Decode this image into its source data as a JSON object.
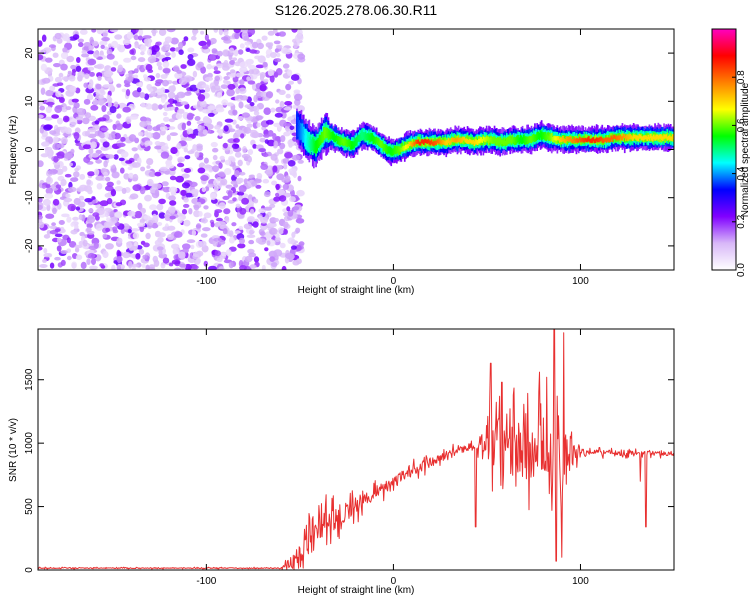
{
  "title": "S126.2025.278.06.30.R11",
  "chart_data": [
    {
      "type": "heatmap",
      "name": "spectrogram",
      "xlabel": "Height of straight line (km)",
      "ylabel": "Frequency (Hz)",
      "xlim": [
        -190,
        150
      ],
      "ylim": [
        -25,
        25
      ],
      "x_ticks": [
        -100,
        0,
        100
      ],
      "y_ticks": [
        -20,
        -10,
        0,
        10,
        20
      ],
      "colorbar": {
        "label": "Normalized spectral amplitude",
        "range": [
          0,
          1
        ],
        "ticks": [
          "0.0",
          "0.2",
          "0.4",
          "0.6",
          "0.8"
        ],
        "colors": [
          "#ffffff",
          "#d8b8f8",
          "#8000ff",
          "#0000ff",
          "#00ffff",
          "#00ff00",
          "#ffff00",
          "#ff8000",
          "#ff0000",
          "#ff00c0"
        ]
      },
      "noise_region_x": [
        -190,
        -52
      ],
      "signal_track": {
        "x": [
          -52,
          -47,
          -42,
          -37,
          -32,
          -27,
          -22,
          -17,
          -12,
          -7,
          -2,
          3,
          8,
          13,
          18,
          23,
          28,
          33,
          38,
          43,
          48,
          53,
          58,
          63,
          68,
          73,
          78,
          83,
          88,
          93,
          98,
          103,
          108,
          113,
          118,
          123,
          128,
          133,
          138,
          143,
          150
        ],
        "y": [
          5,
          2,
          0.5,
          3.5,
          2.5,
          1.5,
          1,
          3,
          2.5,
          1,
          -0.5,
          0,
          1,
          1.5,
          1.5,
          1.5,
          1.5,
          2,
          2,
          1.5,
          2,
          2,
          1.5,
          2,
          2,
          2,
          3,
          2.5,
          2,
          2,
          2,
          2,
          2,
          2,
          2.5,
          2.5,
          2.5,
          2.5,
          2.5,
          2.5,
          2.5
        ],
        "amplitude": [
          0.35,
          0.45,
          0.55,
          0.6,
          0.55,
          0.6,
          0.55,
          0.5,
          0.55,
          0.6,
          0.55,
          0.6,
          0.7,
          0.85,
          0.85,
          0.8,
          0.7,
          0.75,
          0.7,
          0.7,
          0.65,
          0.6,
          0.6,
          0.6,
          0.55,
          0.6,
          0.55,
          0.6,
          0.7,
          0.75,
          0.8,
          0.85,
          0.85,
          0.8,
          0.8,
          0.75,
          0.7,
          0.7,
          0.7,
          0.7,
          0.7
        ]
      }
    },
    {
      "type": "line",
      "name": "snr",
      "xlabel": "Height of straight line (km)",
      "ylabel": "SNR (10 * v/v)",
      "xlim": [
        -190,
        150
      ],
      "ylim": [
        0,
        1900
      ],
      "x_ticks": [
        -100,
        0,
        100
      ],
      "y_ticks": [
        0,
        500,
        1000,
        1500
      ],
      "color": "#e83030",
      "envelope": {
        "x": [
          -190,
          -60,
          -50,
          -45,
          -40,
          -35,
          -30,
          -25,
          -20,
          -15,
          -10,
          -5,
          0,
          5,
          10,
          15,
          20,
          25,
          30,
          35,
          40,
          45,
          50,
          55,
          60,
          65,
          70,
          75,
          80,
          85,
          90,
          95,
          100,
          105,
          110,
          115,
          120,
          125,
          130,
          135,
          140,
          145,
          150
        ],
        "mean": [
          15,
          15,
          100,
          300,
          340,
          390,
          420,
          470,
          500,
          560,
          610,
          650,
          680,
          740,
          790,
          820,
          850,
          880,
          920,
          950,
          960,
          980,
          1000,
          980,
          960,
          950,
          940,
          930,
          920,
          920,
          930,
          940,
          940,
          930,
          930,
          930,
          920,
          920,
          920,
          920,
          920,
          920,
          920
        ],
        "spread": [
          8,
          8,
          200,
          260,
          220,
          220,
          200,
          180,
          160,
          140,
          120,
          110,
          110,
          100,
          90,
          90,
          80,
          70,
          60,
          60,
          70,
          80,
          450,
          500,
          520,
          520,
          500,
          520,
          550,
          560,
          450,
          300,
          60,
          40,
          40,
          40,
          40,
          40,
          40,
          40,
          40,
          40,
          40
        ]
      },
      "spikes": [
        {
          "x": 52,
          "y": 1630
        },
        {
          "x": 58,
          "y": 1480
        },
        {
          "x": 64,
          "y": 1380
        },
        {
          "x": 78,
          "y": 1560
        },
        {
          "x": 82,
          "y": 1520
        },
        {
          "x": 86,
          "y": 1900
        },
        {
          "x": 91,
          "y": 1870
        },
        {
          "x": 87,
          "y": 70
        },
        {
          "x": 90,
          "y": 100
        },
        {
          "x": 44,
          "y": 340
        },
        {
          "x": 112,
          "y": 880
        },
        {
          "x": 132,
          "y": 700
        },
        {
          "x": 135,
          "y": 340
        }
      ]
    }
  ]
}
